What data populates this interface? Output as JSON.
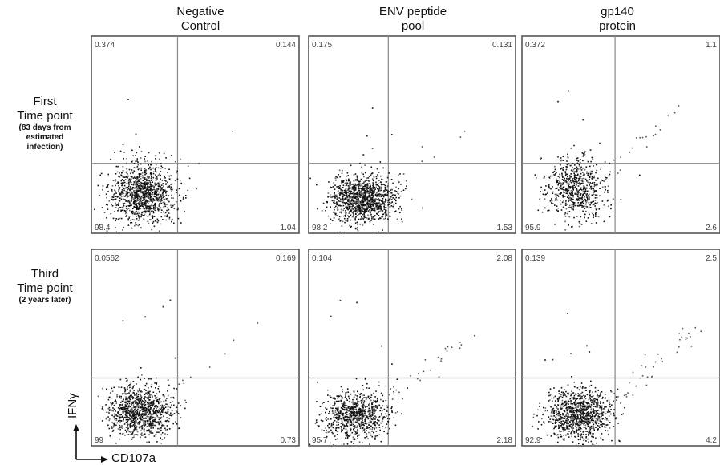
{
  "column_headers": [
    {
      "line1": "Negative",
      "line2": "Control"
    },
    {
      "line1": "ENV peptide",
      "line2": "pool"
    },
    {
      "line1": "gp140",
      "line2": "protein"
    }
  ],
  "row_headers": [
    {
      "main1": "First",
      "main2": "Time point",
      "sub1": "(83 days from",
      "sub2": "estimated",
      "sub3": "infection)"
    },
    {
      "main1": "Third",
      "main2": "Time point",
      "sub1": "(2 years later)",
      "sub2": "",
      "sub3": ""
    }
  ],
  "axes": {
    "y_label": "IFNγ",
    "x_label": "CD107a"
  },
  "chart_data": {
    "type": "scatter",
    "grid_of_panels": {
      "rows": 2,
      "cols": 3
    },
    "xlabel": "CD107a",
    "ylabel": "IFNγ",
    "panels": [
      {
        "row": 0,
        "col": 0,
        "column": "Negative Control",
        "timepoint": "First Time point",
        "quadrants": {
          "upper_left": "0.374",
          "upper_right": "0.144",
          "lower_left": "98.4",
          "lower_right": "1.04"
        }
      },
      {
        "row": 0,
        "col": 1,
        "column": "ENV peptide pool",
        "timepoint": "First Time point",
        "quadrants": {
          "upper_left": "0.175",
          "upper_right": "0.131",
          "lower_left": "98.2",
          "lower_right": "1.53"
        }
      },
      {
        "row": 0,
        "col": 2,
        "column": "gp140 protein",
        "timepoint": "First Time point",
        "quadrants": {
          "upper_left": "0.372",
          "upper_right": "1.1",
          "lower_left": "95.9",
          "lower_right": "2.6"
        }
      },
      {
        "row": 1,
        "col": 0,
        "column": "Negative Control",
        "timepoint": "Third Time point",
        "quadrants": {
          "upper_left": "0.0562",
          "upper_right": "0.169",
          "lower_left": "99",
          "lower_right": "0.73"
        }
      },
      {
        "row": 1,
        "col": 1,
        "column": "ENV peptide pool",
        "timepoint": "Third Time point",
        "quadrants": {
          "upper_left": "0.104",
          "upper_right": "2.08",
          "lower_left": "95.7",
          "lower_right": "2.18"
        }
      },
      {
        "row": 1,
        "col": 2,
        "column": "gp140 protein",
        "timepoint": "Third Time point",
        "quadrants": {
          "upper_left": "0.139",
          "upper_right": "2.5",
          "lower_left": "92.9",
          "lower_right": "4.2"
        }
      }
    ],
    "grid": false,
    "legend": "none"
  }
}
